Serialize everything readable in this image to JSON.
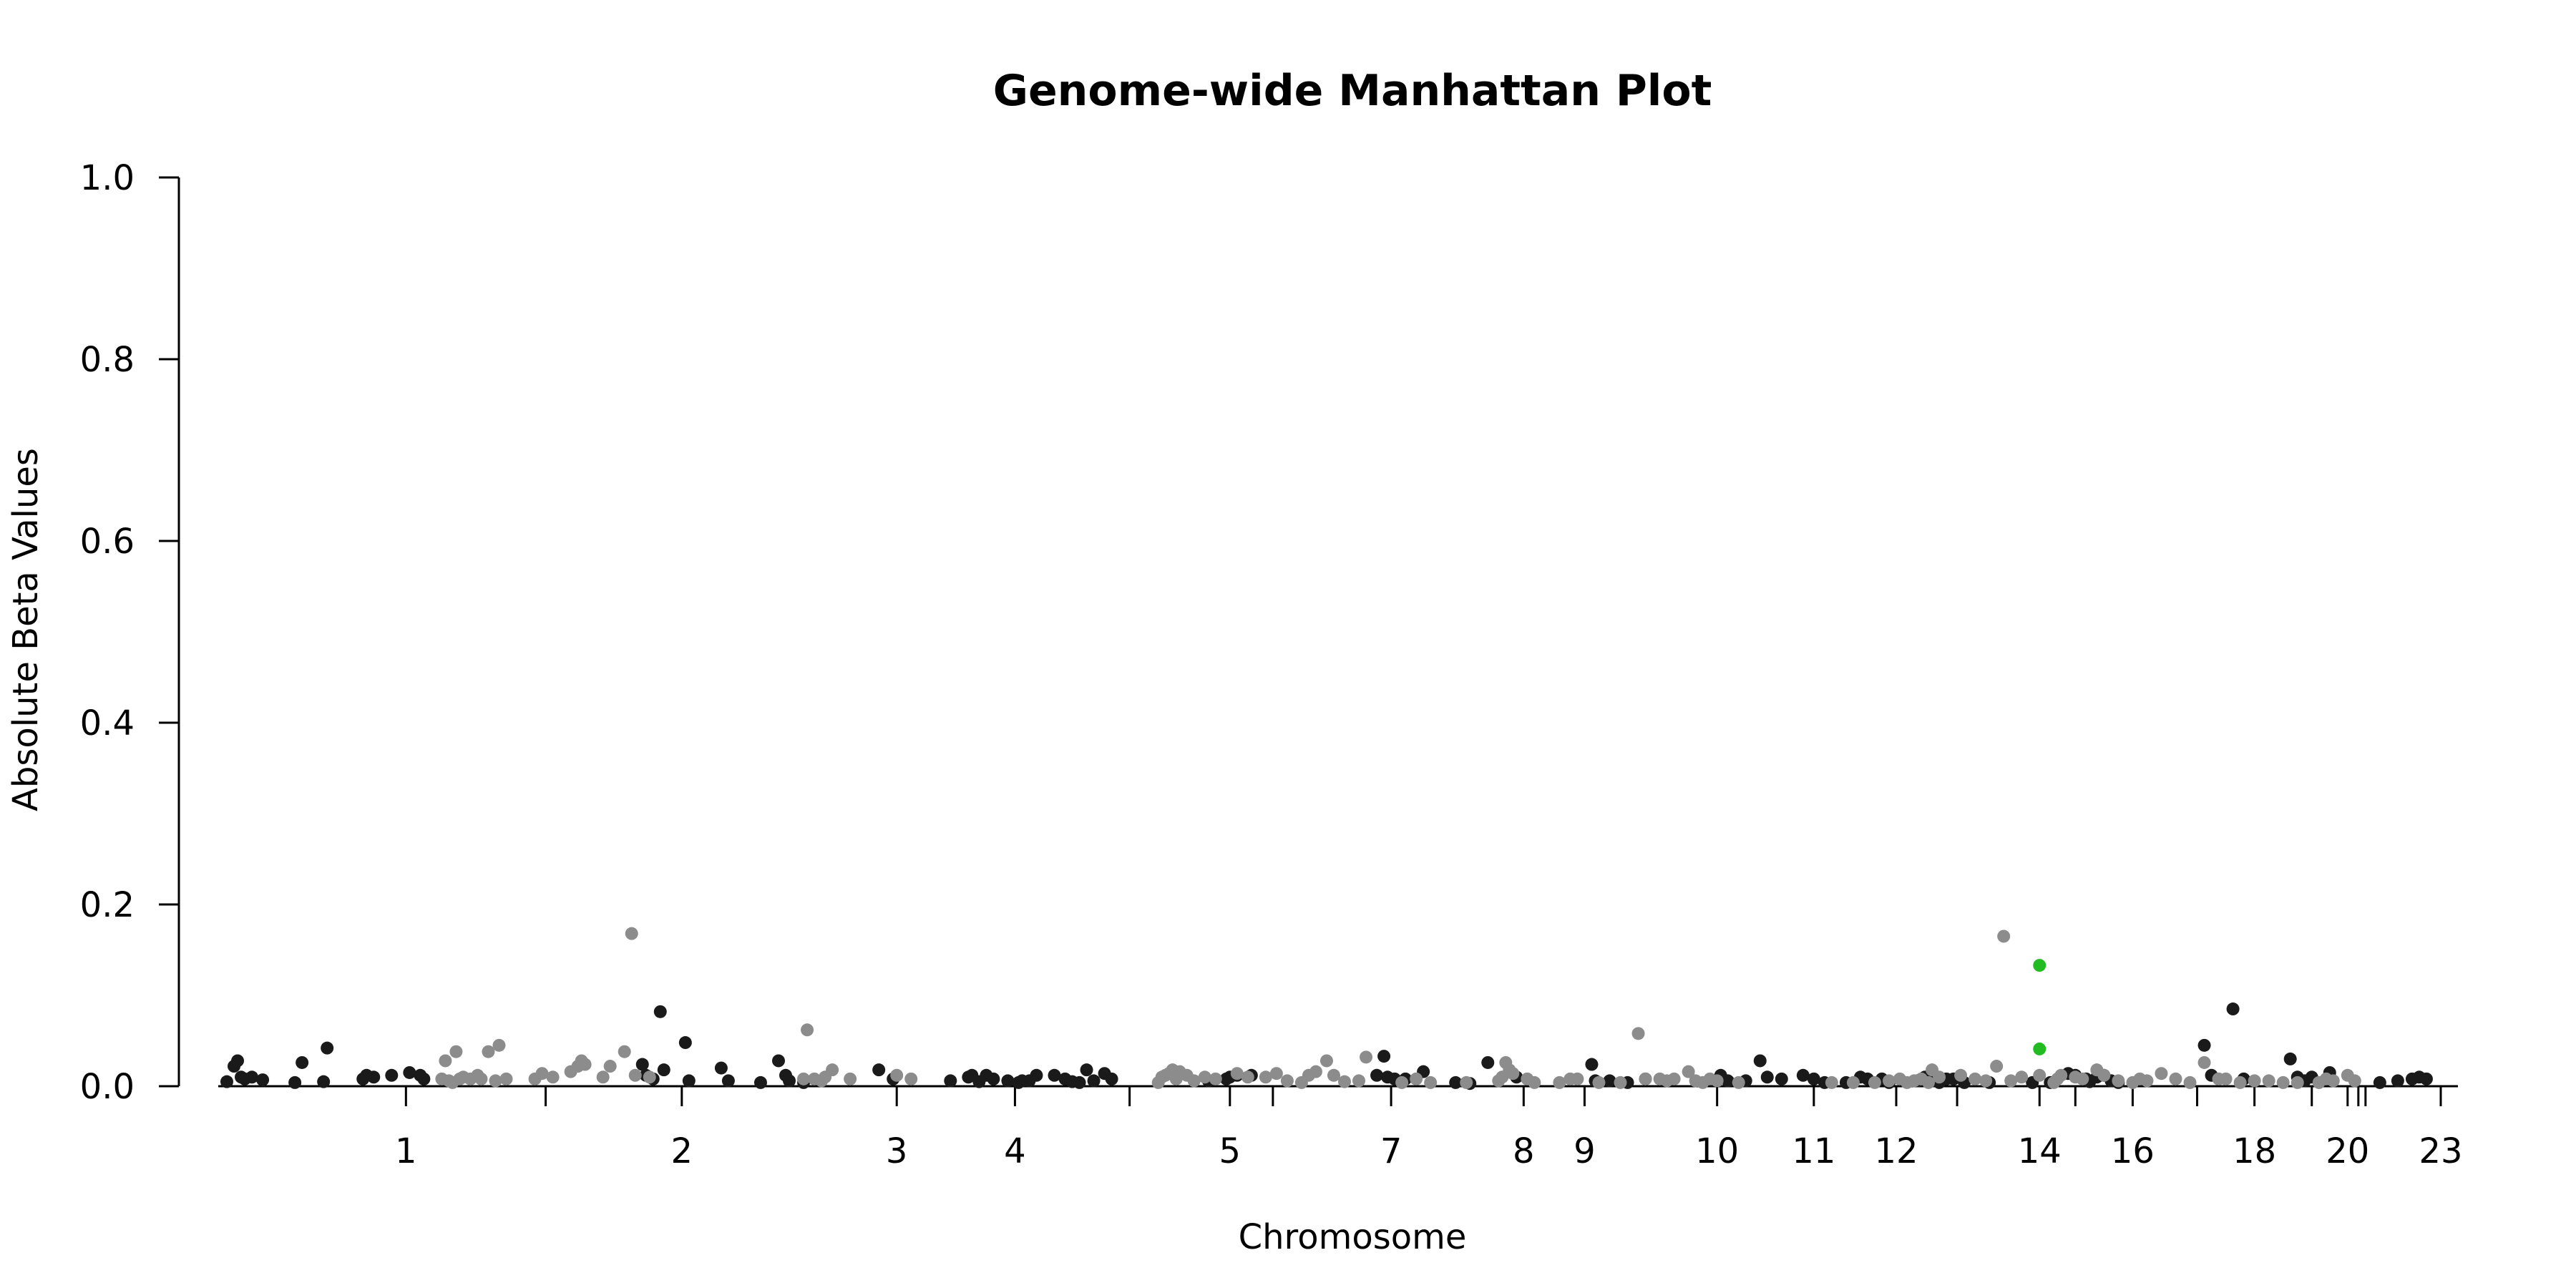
{
  "chart_data": {
    "type": "scatter",
    "title": "Genome-wide Manhattan Plot",
    "xlabel": "Chromosome",
    "ylabel": "Absolute Beta Values",
    "ylim": [
      0,
      1
    ],
    "yticks": [
      "0.0",
      "0.2",
      "0.4",
      "0.6",
      "0.8",
      "1.0"
    ],
    "xlim": [
      0,
      3102
    ],
    "grid": false,
    "colors": {
      "odd": "#1a1a1a",
      "even": "#8c8c8c",
      "highlight": "#22bb22"
    },
    "chromosomes": [
      {
        "label": "1",
        "tick": 250,
        "shown": true
      },
      {
        "label": "",
        "tick": 445,
        "shown": false
      },
      {
        "label": "2",
        "tick": 635,
        "shown": true
      },
      {
        "label": "3",
        "tick": 935,
        "shown": true
      },
      {
        "label": "4",
        "tick": 1100,
        "shown": true
      },
      {
        "label": "",
        "tick": 1260,
        "shown": false
      },
      {
        "label": "5",
        "tick": 1400,
        "shown": true
      },
      {
        "label": "",
        "tick": 1460,
        "shown": false
      },
      {
        "label": "7",
        "tick": 1625,
        "shown": true
      },
      {
        "label": "8",
        "tick": 1810,
        "shown": true
      },
      {
        "label": "9",
        "tick": 1895,
        "shown": true
      },
      {
        "label": "10",
        "tick": 2080,
        "shown": true
      },
      {
        "label": "11",
        "tick": 2215,
        "shown": true
      },
      {
        "label": "12",
        "tick": 2330,
        "shown": true
      },
      {
        "label": "",
        "tick": 2415,
        "shown": false
      },
      {
        "label": "14",
        "tick": 2530,
        "shown": true
      },
      {
        "label": "",
        "tick": 2580,
        "shown": false
      },
      {
        "label": "16",
        "tick": 2660,
        "shown": true
      },
      {
        "label": "",
        "tick": 2750,
        "shown": false
      },
      {
        "label": "18",
        "tick": 2830,
        "shown": true
      },
      {
        "label": "",
        "tick": 2910,
        "shown": false
      },
      {
        "label": "20",
        "tick": 2960,
        "shown": true
      },
      {
        "label": "",
        "tick": 2975,
        "shown": false
      },
      {
        "label": "",
        "tick": 2985,
        "shown": false
      },
      {
        "label": "23",
        "tick": 3090,
        "shown": true
      }
    ],
    "series": [
      {
        "group": "odd",
        "points": [
          [
            0,
            0.005
          ],
          [
            10,
            0.022
          ],
          [
            15,
            0.028
          ],
          [
            20,
            0.01
          ],
          [
            25,
            0.008
          ],
          [
            35,
            0.01
          ],
          [
            50,
            0.007
          ],
          [
            95,
            0.004
          ],
          [
            105,
            0.026
          ],
          [
            135,
            0.005
          ],
          [
            140,
            0.042
          ],
          [
            190,
            0.008
          ],
          [
            195,
            0.012
          ],
          [
            205,
            0.01
          ],
          [
            230,
            0.012
          ],
          [
            255,
            0.015
          ],
          [
            270,
            0.012
          ],
          [
            275,
            0.008
          ],
          [
            580,
            0.024
          ],
          [
            585,
            0.012
          ],
          [
            595,
            0.008
          ],
          [
            605,
            0.082
          ],
          [
            610,
            0.018
          ],
          [
            640,
            0.048
          ],
          [
            645,
            0.006
          ],
          [
            690,
            0.02
          ],
          [
            700,
            0.006
          ],
          [
            745,
            0.004
          ],
          [
            770,
            0.028
          ],
          [
            780,
            0.012
          ],
          [
            785,
            0.006
          ],
          [
            805,
            0.004
          ],
          [
            910,
            0.018
          ],
          [
            930,
            0.008
          ],
          [
            1010,
            0.006
          ],
          [
            1035,
            0.01
          ],
          [
            1040,
            0.012
          ],
          [
            1050,
            0.005
          ],
          [
            1060,
            0.012
          ],
          [
            1070,
            0.008
          ],
          [
            1090,
            0.006
          ],
          [
            1105,
            0.004
          ],
          [
            1110,
            0.006
          ],
          [
            1120,
            0.006
          ],
          [
            1130,
            0.012
          ],
          [
            1155,
            0.012
          ],
          [
            1170,
            0.008
          ],
          [
            1180,
            0.005
          ],
          [
            1190,
            0.004
          ],
          [
            1200,
            0.018
          ],
          [
            1210,
            0.006
          ],
          [
            1225,
            0.014
          ],
          [
            1235,
            0.008
          ],
          [
            1370,
            0.006
          ],
          [
            1395,
            0.008
          ],
          [
            1400,
            0.01
          ],
          [
            1410,
            0.012
          ],
          [
            1430,
            0.012
          ],
          [
            1605,
            0.012
          ],
          [
            1615,
            0.033
          ],
          [
            1620,
            0.01
          ],
          [
            1630,
            0.008
          ],
          [
            1645,
            0.008
          ],
          [
            1670,
            0.016
          ],
          [
            1715,
            0.004
          ],
          [
            1735,
            0.003
          ],
          [
            1760,
            0.026
          ],
          [
            1800,
            0.01
          ],
          [
            1905,
            0.024
          ],
          [
            1910,
            0.006
          ],
          [
            1930,
            0.006
          ],
          [
            1955,
            0.004
          ],
          [
            1980,
            0.008
          ],
          [
            2085,
            0.012
          ],
          [
            2095,
            0.006
          ],
          [
            2120,
            0.006
          ],
          [
            2140,
            0.028
          ],
          [
            2150,
            0.01
          ],
          [
            2170,
            0.008
          ],
          [
            2200,
            0.012
          ],
          [
            2215,
            0.008
          ],
          [
            2230,
            0.004
          ],
          [
            2260,
            0.004
          ],
          [
            2280,
            0.01
          ],
          [
            2290,
            0.008
          ],
          [
            2310,
            0.008
          ],
          [
            2320,
            0.004
          ],
          [
            2360,
            0.006
          ],
          [
            2370,
            0.01
          ],
          [
            2375,
            0.008
          ],
          [
            2380,
            0.006
          ],
          [
            2390,
            0.004
          ],
          [
            2400,
            0.008
          ],
          [
            2410,
            0.008
          ],
          [
            2425,
            0.004
          ],
          [
            2460,
            0.004
          ],
          [
            2520,
            0.004
          ],
          [
            2545,
            0.004
          ],
          [
            2570,
            0.014
          ],
          [
            2580,
            0.012
          ],
          [
            2595,
            0.008
          ],
          [
            2600,
            0.005
          ],
          [
            2610,
            0.01
          ],
          [
            2620,
            0.012
          ],
          [
            2630,
            0.006
          ],
          [
            2640,
            0.004
          ],
          [
            2760,
            0.045
          ],
          [
            2770,
            0.012
          ],
          [
            2800,
            0.085
          ],
          [
            2815,
            0.008
          ],
          [
            2880,
            0.03
          ],
          [
            2890,
            0.01
          ],
          [
            2900,
            0.006
          ],
          [
            2910,
            0.01
          ],
          [
            2935,
            0.015
          ],
          [
            3005,
            0.004
          ],
          [
            3030,
            0.006
          ],
          [
            3050,
            0.008
          ],
          [
            3060,
            0.01
          ],
          [
            3070,
            0.008
          ]
        ]
      },
      {
        "group": "even",
        "points": [
          [
            300,
            0.008
          ],
          [
            305,
            0.028
          ],
          [
            310,
            0.006
          ],
          [
            315,
            0.004
          ],
          [
            320,
            0.038
          ],
          [
            325,
            0.008
          ],
          [
            330,
            0.01
          ],
          [
            340,
            0.008
          ],
          [
            350,
            0.012
          ],
          [
            355,
            0.008
          ],
          [
            365,
            0.038
          ],
          [
            375,
            0.006
          ],
          [
            380,
            0.045
          ],
          [
            390,
            0.008
          ],
          [
            430,
            0.008
          ],
          [
            440,
            0.014
          ],
          [
            455,
            0.01
          ],
          [
            480,
            0.016
          ],
          [
            490,
            0.022
          ],
          [
            495,
            0.028
          ],
          [
            500,
            0.024
          ],
          [
            525,
            0.01
          ],
          [
            535,
            0.022
          ],
          [
            555,
            0.038
          ],
          [
            565,
            0.168
          ],
          [
            570,
            0.012
          ],
          [
            590,
            0.01
          ],
          [
            805,
            0.008
          ],
          [
            810,
            0.062
          ],
          [
            820,
            0.008
          ],
          [
            830,
            0.006
          ],
          [
            835,
            0.01
          ],
          [
            845,
            0.018
          ],
          [
            870,
            0.008
          ],
          [
            935,
            0.012
          ],
          [
            955,
            0.008
          ],
          [
            1300,
            0.004
          ],
          [
            1305,
            0.01
          ],
          [
            1310,
            0.012
          ],
          [
            1315,
            0.014
          ],
          [
            1320,
            0.018
          ],
          [
            1325,
            0.008
          ],
          [
            1330,
            0.016
          ],
          [
            1340,
            0.012
          ],
          [
            1350,
            0.006
          ],
          [
            1365,
            0.01
          ],
          [
            1380,
            0.008
          ],
          [
            1410,
            0.014
          ],
          [
            1425,
            0.01
          ],
          [
            1450,
            0.01
          ],
          [
            1465,
            0.014
          ],
          [
            1480,
            0.006
          ],
          [
            1500,
            0.004
          ],
          [
            1510,
            0.012
          ],
          [
            1520,
            0.016
          ],
          [
            1535,
            0.028
          ],
          [
            1545,
            0.012
          ],
          [
            1560,
            0.005
          ],
          [
            1580,
            0.006
          ],
          [
            1590,
            0.032
          ],
          [
            1640,
            0.004
          ],
          [
            1660,
            0.008
          ],
          [
            1680,
            0.004
          ],
          [
            1730,
            0.004
          ],
          [
            1775,
            0.006
          ],
          [
            1780,
            0.01
          ],
          [
            1785,
            0.026
          ],
          [
            1790,
            0.018
          ],
          [
            1795,
            0.014
          ],
          [
            1815,
            0.008
          ],
          [
            1825,
            0.004
          ],
          [
            1860,
            0.004
          ],
          [
            1875,
            0.008
          ],
          [
            1885,
            0.008
          ],
          [
            1915,
            0.004
          ],
          [
            1945,
            0.004
          ],
          [
            1970,
            0.058
          ],
          [
            1980,
            0.008
          ],
          [
            2000,
            0.008
          ],
          [
            2010,
            0.006
          ],
          [
            2020,
            0.008
          ],
          [
            2040,
            0.016
          ],
          [
            2050,
            0.006
          ],
          [
            2060,
            0.004
          ],
          [
            2070,
            0.008
          ],
          [
            2080,
            0.006
          ],
          [
            2110,
            0.004
          ],
          [
            2240,
            0.004
          ],
          [
            2270,
            0.004
          ],
          [
            2300,
            0.004
          ],
          [
            2320,
            0.006
          ],
          [
            2335,
            0.008
          ],
          [
            2345,
            0.004
          ],
          [
            2355,
            0.006
          ],
          [
            2365,
            0.008
          ],
          [
            2375,
            0.004
          ],
          [
            2380,
            0.018
          ],
          [
            2390,
            0.01
          ],
          [
            2420,
            0.012
          ],
          [
            2440,
            0.008
          ],
          [
            2455,
            0.006
          ],
          [
            2470,
            0.022
          ],
          [
            2480,
            0.165
          ],
          [
            2490,
            0.006
          ],
          [
            2505,
            0.01
          ],
          [
            2530,
            0.012
          ],
          [
            2550,
            0.004
          ],
          [
            2555,
            0.008
          ],
          [
            2560,
            0.012
          ],
          [
            2580,
            0.01
          ],
          [
            2590,
            0.008
          ],
          [
            2610,
            0.018
          ],
          [
            2620,
            0.012
          ],
          [
            2640,
            0.006
          ],
          [
            2660,
            0.004
          ],
          [
            2670,
            0.008
          ],
          [
            2680,
            0.006
          ],
          [
            2700,
            0.014
          ],
          [
            2720,
            0.008
          ],
          [
            2740,
            0.004
          ],
          [
            2760,
            0.026
          ],
          [
            2780,
            0.008
          ],
          [
            2790,
            0.008
          ],
          [
            2810,
            0.004
          ],
          [
            2830,
            0.006
          ],
          [
            2850,
            0.006
          ],
          [
            2870,
            0.004
          ],
          [
            2890,
            0.004
          ],
          [
            2920,
            0.004
          ],
          [
            2930,
            0.008
          ],
          [
            2940,
            0.006
          ],
          [
            2960,
            0.012
          ],
          [
            2970,
            0.006
          ]
        ]
      },
      {
        "group": "highlight",
        "points": [
          [
            2530,
            0.133
          ],
          [
            2530,
            0.041
          ]
        ]
      }
    ]
  }
}
